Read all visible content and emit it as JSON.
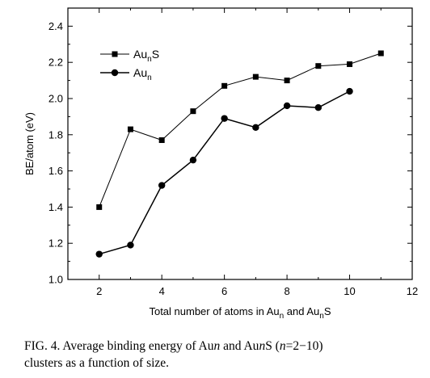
{
  "chart_data": {
    "type": "line",
    "xlabel": "Total number of atoms in Auₙ and AuₙS",
    "xlabel_parts": [
      "Total number of atoms in Au",
      "n",
      " and Au",
      "n",
      "S"
    ],
    "ylabel": "BE/atom (eV)",
    "xlim": [
      1,
      12
    ],
    "ylim": [
      1.0,
      2.5
    ],
    "xticks": [
      2,
      4,
      6,
      8,
      10,
      12
    ],
    "yticks": [
      1.0,
      1.2,
      1.4,
      1.6,
      1.8,
      2.0,
      2.2,
      2.4
    ],
    "grid": false,
    "legend_position": "top-left",
    "series": [
      {
        "name": "AunS",
        "name_parts": [
          "Au",
          "n",
          "S"
        ],
        "marker": "square",
        "x": [
          2,
          3,
          4,
          5,
          6,
          7,
          8,
          9,
          10,
          11
        ],
        "y": [
          1.4,
          1.83,
          1.77,
          1.93,
          2.07,
          2.12,
          2.1,
          2.18,
          2.19,
          2.25
        ]
      },
      {
        "name": "Aun",
        "name_parts": [
          "Au",
          "n",
          ""
        ],
        "marker": "circle",
        "x": [
          2,
          3,
          4,
          5,
          6,
          7,
          8,
          9,
          10
        ],
        "y": [
          1.14,
          1.19,
          1.52,
          1.66,
          1.89,
          1.84,
          1.96,
          1.95,
          2.04
        ]
      }
    ]
  },
  "caption": {
    "p1": "FIG. 4. Average binding energy of Au",
    "p2": "n",
    "p3": " and Au",
    "p4": "n",
    "p5": "S (",
    "p6": "n",
    "p7": "=2−10)",
    "p8": "clusters as a function of size."
  }
}
